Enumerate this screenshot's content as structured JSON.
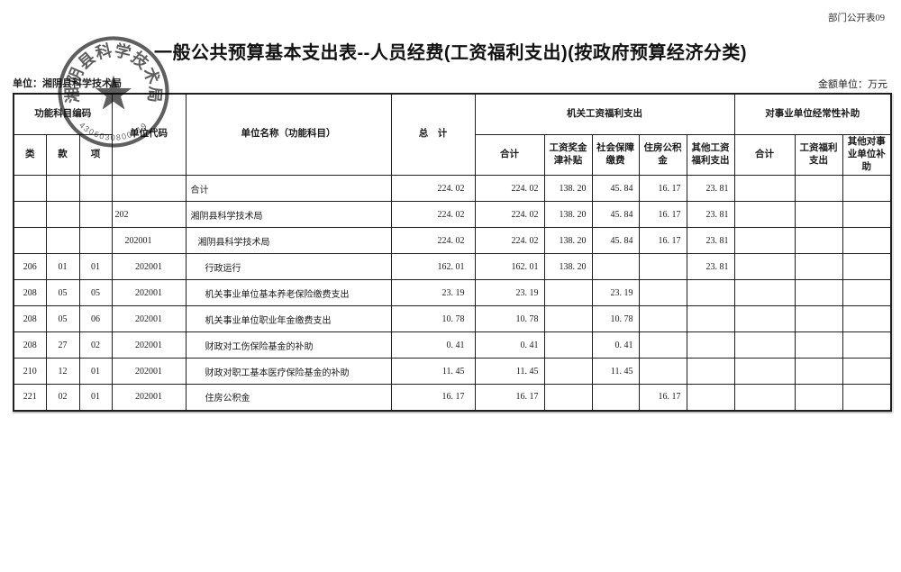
{
  "doc_label": "部门公开表09",
  "title": "一般公共预算基本支出表--人员经费(工资福利支出)(按政府预算经济分类)",
  "unit_line": "单位：湘阴县科学技术局",
  "amount_unit_line": "金额单位：万元",
  "stamp": {
    "org_text": "湘阴县科学技术局",
    "number": "4306030800219",
    "color": "#3c3c3c"
  },
  "colors": {
    "border": "#1f1f1f",
    "text": "#1a1a1a",
    "background": "#ffffff"
  },
  "table": {
    "header": {
      "func_code_group": "功能科目编码",
      "col_class": "类",
      "col_section": "款",
      "col_item": "项",
      "unit_code": "单位代码",
      "unit_name": "单位名称（功能科目）",
      "total": "总　计",
      "org_group": "机关工资福利支出",
      "org_cols": [
        "合计",
        "工资奖金津补贴",
        "社会保障缴费",
        "住房公积金",
        "其他工资福利支出"
      ],
      "subsidy_group": "对事业单位经常性补助",
      "subsidy_cols": [
        "合计",
        "工资福利支出",
        "其他对事业单位补助"
      ]
    },
    "rows": [
      {
        "lei": "",
        "kuan": "",
        "xiang": "",
        "code": "",
        "code_align": "center",
        "name": "合计",
        "name_indent": 0,
        "values": [
          "224. 02",
          "224. 02",
          "138. 20",
          "45. 84",
          "16. 17",
          "23. 81",
          "",
          "",
          ""
        ]
      },
      {
        "lei": "",
        "kuan": "",
        "xiang": "",
        "code": "202",
        "code_align": "left",
        "name": "湘阴县科学技术局",
        "name_indent": 0,
        "values": [
          "224. 02",
          "224. 02",
          "138. 20",
          "45. 84",
          "16. 17",
          "23. 81",
          "",
          "",
          ""
        ]
      },
      {
        "lei": "",
        "kuan": "",
        "xiang": "",
        "code": "202001",
        "code_align": "indent",
        "name": "湘阴县科学技术局",
        "name_indent": 1,
        "values": [
          "224. 02",
          "224. 02",
          "138. 20",
          "45. 84",
          "16. 17",
          "23. 81",
          "",
          "",
          ""
        ]
      },
      {
        "lei": "206",
        "kuan": "01",
        "xiang": "01",
        "code": "202001",
        "code_align": "center",
        "name": "行政运行",
        "name_indent": 2,
        "values": [
          "162. 01",
          "162. 01",
          "138. 20",
          "",
          "",
          "23. 81",
          "",
          "",
          ""
        ]
      },
      {
        "lei": "208",
        "kuan": "05",
        "xiang": "05",
        "code": "202001",
        "code_align": "center",
        "name": "机关事业单位基本养老保险缴费支出",
        "name_indent": 2,
        "values": [
          "23. 19",
          "23. 19",
          "",
          "23. 19",
          "",
          "",
          "",
          "",
          ""
        ]
      },
      {
        "lei": "208",
        "kuan": "05",
        "xiang": "06",
        "code": "202001",
        "code_align": "center",
        "name": "机关事业单位职业年金缴费支出",
        "name_indent": 2,
        "values": [
          "10. 78",
          "10. 78",
          "",
          "10. 78",
          "",
          "",
          "",
          "",
          ""
        ]
      },
      {
        "lei": "208",
        "kuan": "27",
        "xiang": "02",
        "code": "202001",
        "code_align": "center",
        "name": "财政对工伤保险基金的补助",
        "name_indent": 2,
        "values": [
          "0. 41",
          "0. 41",
          "",
          "0. 41",
          "",
          "",
          "",
          "",
          ""
        ]
      },
      {
        "lei": "210",
        "kuan": "12",
        "xiang": "01",
        "code": "202001",
        "code_align": "center",
        "name": "财政对职工基本医疗保险基金的补助",
        "name_indent": 2,
        "values": [
          "11. 45",
          "11. 45",
          "",
          "11. 45",
          "",
          "",
          "",
          "",
          ""
        ]
      },
      {
        "lei": "221",
        "kuan": "02",
        "xiang": "01",
        "code": "202001",
        "code_align": "center",
        "name": "住房公积金",
        "name_indent": 2,
        "values": [
          "16. 17",
          "16. 17",
          "",
          "",
          "16. 17",
          "",
          "",
          "",
          ""
        ]
      }
    ]
  }
}
